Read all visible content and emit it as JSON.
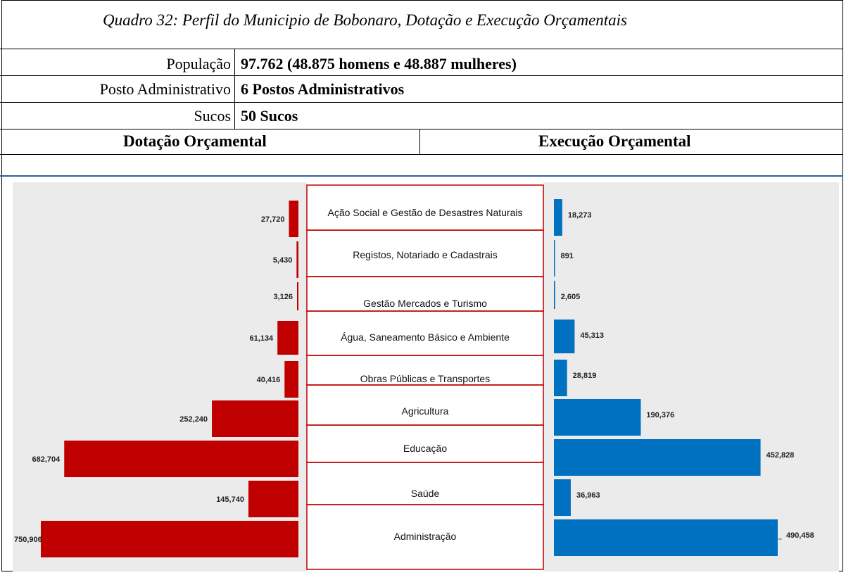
{
  "title": "Quadro 32:   Perfil do Municipio de Bobonaro, Dotação e Execução Orçamentais",
  "profile": {
    "populacao_label": "População",
    "populacao_value": "97.762 (48.875 homens e 48.887 mulheres)",
    "posto_label": "Posto Administrativo",
    "posto_value": "6 Postos Administrativos",
    "sucos_label": "Sucos",
    "sucos_value": "50 Sucos"
  },
  "headers": {
    "dotacao": "Dotação Orçamental",
    "execucao": "Execução Orçamental"
  },
  "colors": {
    "dotacao": "#c00000",
    "execucao": "#0070c0",
    "panel": "#ebebeb",
    "label_border": "#c00000"
  },
  "chart_data": {
    "type": "bar",
    "categories": [
      "Ação Social e Gestão de Desastres Naturais",
      "Registos, Notariado e Cadastrais",
      "Gestão Mercados e Turismo",
      "Água, Saneamento Básico e Ambiente",
      "Obras Públicas e Transportes",
      "Agricultura",
      "Educação",
      "Saúde",
      "Administração"
    ],
    "series": [
      {
        "name": "Dotação Orçamental",
        "values": [
          27720,
          5430,
          3126,
          61134,
          40416,
          252240,
          682704,
          145740,
          750906
        ]
      },
      {
        "name": "Execução Orçamental",
        "values": [
          18273,
          891,
          2605,
          45313,
          28819,
          190376,
          452828,
          36963,
          490458
        ]
      }
    ],
    "value_labels": {
      "dotacao": [
        "27,720",
        "5,430",
        "3,126",
        "61,134",
        "40,416",
        "252,240",
        "682,704",
        "145,740",
        "750,906"
      ],
      "execucao": [
        "18,273",
        "891",
        "2,605",
        "45,313",
        "28,819",
        "190,376",
        "452,828",
        "36,963",
        "490,458"
      ]
    }
  }
}
